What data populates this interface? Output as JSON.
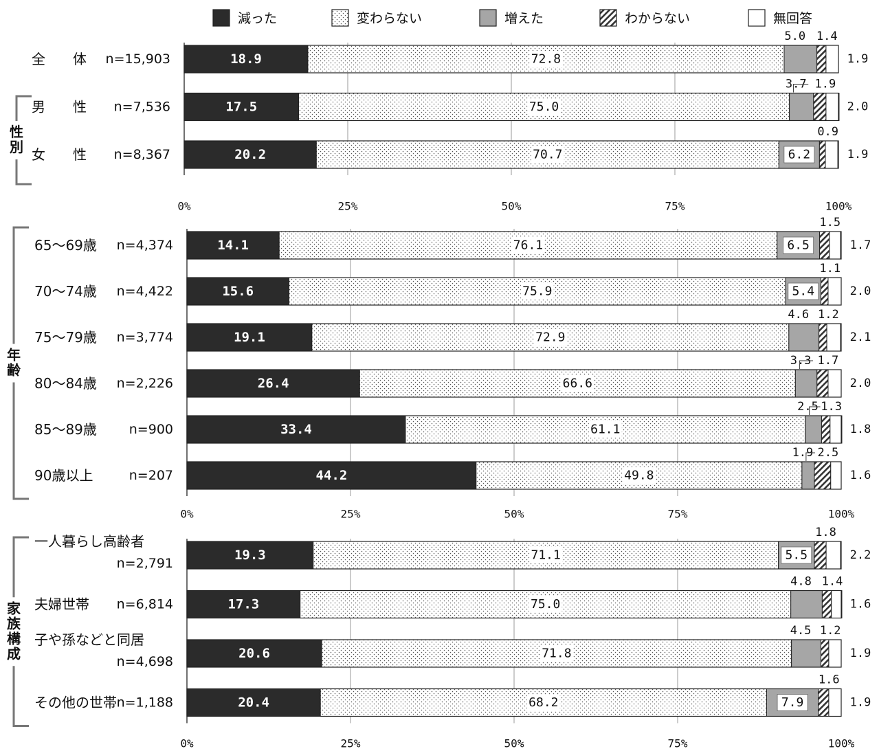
{
  "legend": [
    {
      "key": "decreased",
      "label": "減った",
      "pattern": "solid-dark"
    },
    {
      "key": "unchanged",
      "label": "変わらない",
      "pattern": "dots"
    },
    {
      "key": "increased",
      "label": "増えた",
      "pattern": "solid-gray"
    },
    {
      "key": "unknown",
      "label": "わからない",
      "pattern": "hatch"
    },
    {
      "key": "no_answer",
      "label": "無回答",
      "pattern": "white"
    }
  ],
  "colors": {
    "decreased": "#2b2b2b",
    "unchanged": "#ffffff",
    "dots": "#555555",
    "increased": "#a6a6a6",
    "unknown": "#ffffff",
    "hatch": "#333333",
    "no_answer": "#ffffff",
    "grid": "#9a9a9a",
    "axis": "#333333"
  },
  "chart_data": {
    "type": "bar",
    "stacked": true,
    "orientation": "horizontal",
    "units": "%",
    "xlim": [
      0,
      100
    ],
    "ticks": [
      "0%",
      "25%",
      "50%",
      "75%",
      "100%"
    ],
    "series_order": [
      "decreased",
      "unchanged",
      "increased",
      "unknown",
      "no_answer"
    ],
    "panels": [
      {
        "groups": [
          {
            "label": "",
            "rows": [
              0
            ]
          },
          {
            "label": "性別",
            "rows": [
              1,
              2
            ]
          }
        ],
        "rows": [
          {
            "label": "全　　体",
            "n": "n=15,903",
            "values": [
              18.9,
              72.8,
              5.0,
              1.4,
              1.9
            ]
          },
          {
            "label": "男　　性",
            "n": "n=7,536",
            "values": [
              17.5,
              75.0,
              3.7,
              1.9,
              2.0
            ]
          },
          {
            "label": "女　　性",
            "n": "n=8,367",
            "values": [
              20.2,
              70.7,
              6.2,
              0.9,
              1.9
            ]
          }
        ]
      },
      {
        "groups": [
          {
            "label": "年齢",
            "rows": [
              0,
              1,
              2,
              3,
              4,
              5
            ]
          }
        ],
        "rows": [
          {
            "label": "65～69歳",
            "n": "n=4,374",
            "values": [
              14.1,
              76.1,
              6.5,
              1.5,
              1.7
            ]
          },
          {
            "label": "70～74歳",
            "n": "n=4,422",
            "values": [
              15.6,
              75.9,
              5.4,
              1.1,
              2.0
            ]
          },
          {
            "label": "75～79歳",
            "n": "n=3,774",
            "values": [
              19.1,
              72.9,
              4.6,
              1.2,
              2.1
            ]
          },
          {
            "label": "80～84歳",
            "n": "n=2,226",
            "values": [
              26.4,
              66.6,
              3.3,
              1.7,
              2.0
            ]
          },
          {
            "label": "85～89歳",
            "n": "n=900",
            "values": [
              33.4,
              61.1,
              2.5,
              1.3,
              1.8
            ]
          },
          {
            "label": "90歳以上",
            "n": "n=207",
            "values": [
              44.2,
              49.8,
              1.9,
              2.5,
              1.6
            ]
          }
        ]
      },
      {
        "groups": [
          {
            "label": "家族構成",
            "rows": [
              0,
              1,
              2,
              3
            ]
          }
        ],
        "rows": [
          {
            "label": "一人暮らし高齢者",
            "n": "n=2,791",
            "values": [
              19.3,
              71.1,
              5.5,
              1.8,
              2.2
            ]
          },
          {
            "label": "夫婦世帯",
            "n": "n=6,814",
            "values": [
              17.3,
              75.0,
              4.8,
              1.4,
              1.6
            ]
          },
          {
            "label": "子や孫などと同居",
            "n": "n=4,698",
            "values": [
              20.6,
              71.8,
              4.5,
              1.2,
              1.9
            ]
          },
          {
            "label": "その他の世帯",
            "n": "n=1,188",
            "values": [
              20.4,
              68.2,
              7.9,
              1.6,
              1.9
            ]
          }
        ]
      }
    ]
  }
}
